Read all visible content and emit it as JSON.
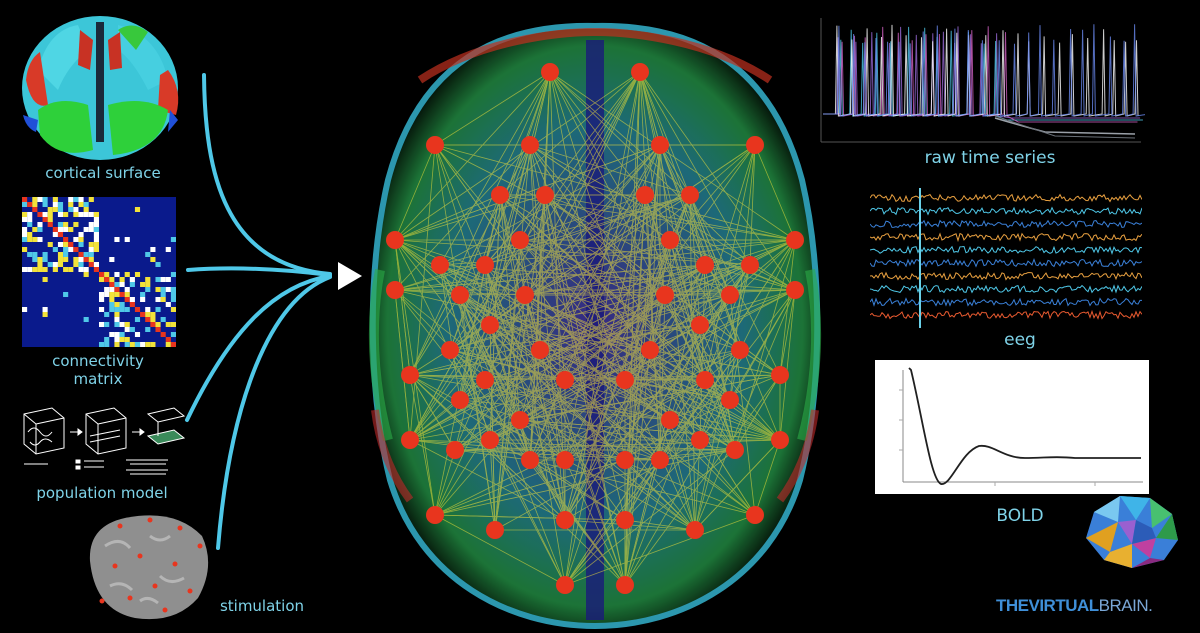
{
  "inputs": [
    {
      "label": "cortical surface"
    },
    {
      "label_line1": "connectivity",
      "label_line2": "matrix"
    },
    {
      "label": "population model"
    },
    {
      "label": "stimulation"
    }
  ],
  "outputs": [
    {
      "label": "raw time series"
    },
    {
      "label": "eeg"
    },
    {
      "label": "BOLD"
    }
  ],
  "branding": {
    "logo_bold": "THEVIRTUAL",
    "logo_rest": "BRAIN."
  },
  "colors": {
    "label": "#7fd3e8",
    "arrow": "#4fc8e8",
    "node": "#e8351e",
    "edge": "#f2e23a",
    "matrix_bg": "#0a1a8c"
  }
}
